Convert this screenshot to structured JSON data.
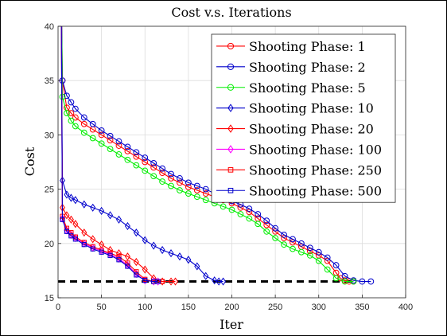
{
  "chart_data": {
    "type": "line",
    "title": "Cost v.s. Iterations",
    "xlabel": "Iter",
    "ylabel": "Cost",
    "xlim": [
      0,
      400
    ],
    "ylim": [
      15,
      40
    ],
    "xticks": [
      0,
      50,
      100,
      150,
      200,
      250,
      300,
      350,
      400
    ],
    "yticks": [
      15,
      20,
      25,
      30,
      35,
      40
    ],
    "xtick_labels": [
      "0",
      "50",
      "100",
      "150",
      "200",
      "250",
      "300",
      "350",
      "400"
    ],
    "ytick_labels": [
      "15",
      "20",
      "25",
      "30",
      "35",
      "40"
    ],
    "grid": true,
    "legend_position": "top-right",
    "reference_line": {
      "y": 16.5,
      "x_range": [
        0,
        340
      ],
      "color": "#000000",
      "style": "dashed"
    },
    "series": [
      {
        "name": "Shooting Phase: 1",
        "color": "#ff0000",
        "marker": "circle",
        "points": [
          [
            5,
            35.0
          ],
          [
            10,
            32.5
          ],
          [
            15,
            32.0
          ],
          [
            20,
            31.6
          ],
          [
            30,
            31.0
          ],
          [
            40,
            30.5
          ],
          [
            50,
            30.0
          ],
          [
            60,
            29.5
          ],
          [
            70,
            29.0
          ],
          [
            80,
            28.5
          ],
          [
            90,
            28.0
          ],
          [
            100,
            27.5
          ],
          [
            110,
            27.0
          ],
          [
            120,
            26.5
          ],
          [
            130,
            26.0
          ],
          [
            140,
            25.6
          ],
          [
            150,
            25.2
          ],
          [
            160,
            24.9
          ],
          [
            170,
            24.6
          ],
          [
            180,
            24.3
          ],
          [
            190,
            24.0
          ],
          [
            200,
            23.7
          ],
          [
            210,
            23.3
          ],
          [
            220,
            22.9
          ],
          [
            230,
            22.3
          ],
          [
            240,
            21.7
          ],
          [
            250,
            21.1
          ],
          [
            260,
            20.5
          ],
          [
            270,
            20.1
          ],
          [
            280,
            19.7
          ],
          [
            290,
            19.3
          ],
          [
            300,
            18.9
          ],
          [
            310,
            18.4
          ],
          [
            320,
            17.3
          ],
          [
            325,
            16.8
          ],
          [
            330,
            16.6
          ],
          [
            335,
            16.5
          ],
          [
            340,
            16.5
          ]
        ]
      },
      {
        "name": "Shooting Phase: 2",
        "color": "#0000cc",
        "marker": "circle",
        "points": [
          [
            5,
            35.0
          ],
          [
            10,
            33.6
          ],
          [
            15,
            33.0
          ],
          [
            20,
            32.4
          ],
          [
            30,
            31.6
          ],
          [
            40,
            31.0
          ],
          [
            50,
            30.4
          ],
          [
            60,
            29.9
          ],
          [
            70,
            29.4
          ],
          [
            80,
            28.9
          ],
          [
            90,
            28.4
          ],
          [
            100,
            27.9
          ],
          [
            110,
            27.4
          ],
          [
            120,
            26.9
          ],
          [
            130,
            26.4
          ],
          [
            140,
            26.0
          ],
          [
            150,
            25.6
          ],
          [
            160,
            25.3
          ],
          [
            170,
            25.0
          ],
          [
            180,
            24.6
          ],
          [
            190,
            24.2
          ],
          [
            200,
            23.9
          ],
          [
            210,
            23.6
          ],
          [
            220,
            23.2
          ],
          [
            230,
            22.7
          ],
          [
            240,
            22.1
          ],
          [
            250,
            21.4
          ],
          [
            260,
            20.8
          ],
          [
            270,
            20.4
          ],
          [
            280,
            20.0
          ],
          [
            290,
            19.6
          ],
          [
            300,
            19.2
          ],
          [
            310,
            18.7
          ],
          [
            320,
            18.0
          ],
          [
            330,
            17.0
          ],
          [
            340,
            16.6
          ],
          [
            350,
            16.5
          ],
          [
            360,
            16.5
          ]
        ]
      },
      {
        "name": "Shooting Phase: 5",
        "color": "#00ee00",
        "marker": "circle",
        "points": [
          [
            5,
            33.5
          ],
          [
            10,
            32.0
          ],
          [
            15,
            31.3
          ],
          [
            20,
            30.8
          ],
          [
            30,
            30.2
          ],
          [
            40,
            29.7
          ],
          [
            50,
            29.2
          ],
          [
            60,
            28.7
          ],
          [
            70,
            28.2
          ],
          [
            80,
            27.7
          ],
          [
            90,
            27.2
          ],
          [
            100,
            26.7
          ],
          [
            110,
            26.2
          ],
          [
            120,
            25.7
          ],
          [
            130,
            25.3
          ],
          [
            140,
            24.9
          ],
          [
            150,
            24.6
          ],
          [
            160,
            24.3
          ],
          [
            170,
            24.0
          ],
          [
            180,
            23.7
          ],
          [
            190,
            23.4
          ],
          [
            200,
            23.1
          ],
          [
            210,
            22.7
          ],
          [
            220,
            22.3
          ],
          [
            230,
            21.8
          ],
          [
            240,
            21.1
          ],
          [
            250,
            20.5
          ],
          [
            260,
            19.9
          ],
          [
            270,
            19.5
          ],
          [
            280,
            19.2
          ],
          [
            290,
            18.9
          ],
          [
            300,
            18.4
          ],
          [
            310,
            17.6
          ],
          [
            320,
            16.8
          ],
          [
            330,
            16.5
          ],
          [
            340,
            16.5
          ]
        ]
      },
      {
        "name": "Shooting Phase: 10",
        "color": "#0000cc",
        "marker": "diamond",
        "points": [
          [
            5,
            25.8
          ],
          [
            10,
            24.5
          ],
          [
            15,
            24.2
          ],
          [
            20,
            24.0
          ],
          [
            30,
            23.6
          ],
          [
            40,
            23.3
          ],
          [
            50,
            23.0
          ],
          [
            60,
            22.6
          ],
          [
            70,
            22.2
          ],
          [
            80,
            21.6
          ],
          [
            90,
            21.0
          ],
          [
            100,
            20.3
          ],
          [
            110,
            19.8
          ],
          [
            120,
            19.4
          ],
          [
            130,
            19.1
          ],
          [
            140,
            18.8
          ],
          [
            150,
            18.5
          ],
          [
            160,
            17.9
          ],
          [
            170,
            17.0
          ],
          [
            180,
            16.6
          ],
          [
            185,
            16.5
          ],
          [
            190,
            16.5
          ]
        ]
      },
      {
        "name": "Shooting Phase: 20",
        "color": "#ff0000",
        "marker": "diamond",
        "points": [
          [
            5,
            23.3
          ],
          [
            10,
            22.6
          ],
          [
            15,
            22.2
          ],
          [
            20,
            21.8
          ],
          [
            30,
            21.0
          ],
          [
            40,
            20.4
          ],
          [
            50,
            19.9
          ],
          [
            60,
            19.4
          ],
          [
            70,
            19.1
          ],
          [
            80,
            18.8
          ],
          [
            90,
            18.3
          ],
          [
            100,
            17.6
          ],
          [
            110,
            16.8
          ],
          [
            120,
            16.5
          ],
          [
            130,
            16.5
          ],
          [
            135,
            16.5
          ]
        ]
      },
      {
        "name": "Shooting Phase: 100",
        "color": "#ff00ff",
        "marker": "diamond",
        "points": [
          [
            5,
            22.3
          ],
          [
            10,
            21.2
          ],
          [
            15,
            20.8
          ],
          [
            20,
            20.5
          ],
          [
            30,
            20.0
          ],
          [
            40,
            19.6
          ],
          [
            50,
            19.3
          ],
          [
            60,
            19.0
          ],
          [
            70,
            18.6
          ],
          [
            80,
            18.0
          ],
          [
            90,
            17.2
          ],
          [
            100,
            16.6
          ],
          [
            110,
            16.5
          ],
          [
            115,
            16.5
          ]
        ]
      },
      {
        "name": "Shooting Phase: 250",
        "color": "#ff0000",
        "marker": "square",
        "points": [
          [
            5,
            22.5
          ],
          [
            10,
            21.4
          ],
          [
            15,
            21.0
          ],
          [
            20,
            20.6
          ],
          [
            30,
            20.1
          ],
          [
            40,
            19.7
          ],
          [
            50,
            19.4
          ],
          [
            60,
            19.1
          ],
          [
            70,
            18.8
          ],
          [
            80,
            18.2
          ],
          [
            90,
            17.4
          ],
          [
            100,
            16.7
          ],
          [
            110,
            16.5
          ],
          [
            120,
            16.5
          ]
        ]
      },
      {
        "name": "Shooting Phase: 500",
        "color": "#0000cc",
        "marker": "square",
        "points": [
          [
            5,
            22.2
          ],
          [
            10,
            21.1
          ],
          [
            15,
            20.7
          ],
          [
            20,
            20.4
          ],
          [
            30,
            19.9
          ],
          [
            40,
            19.5
          ],
          [
            50,
            19.2
          ],
          [
            60,
            18.9
          ],
          [
            70,
            18.5
          ],
          [
            80,
            17.9
          ],
          [
            90,
            17.1
          ],
          [
            100,
            16.6
          ],
          [
            110,
            16.5
          ],
          [
            115,
            16.5
          ]
        ]
      }
    ]
  }
}
